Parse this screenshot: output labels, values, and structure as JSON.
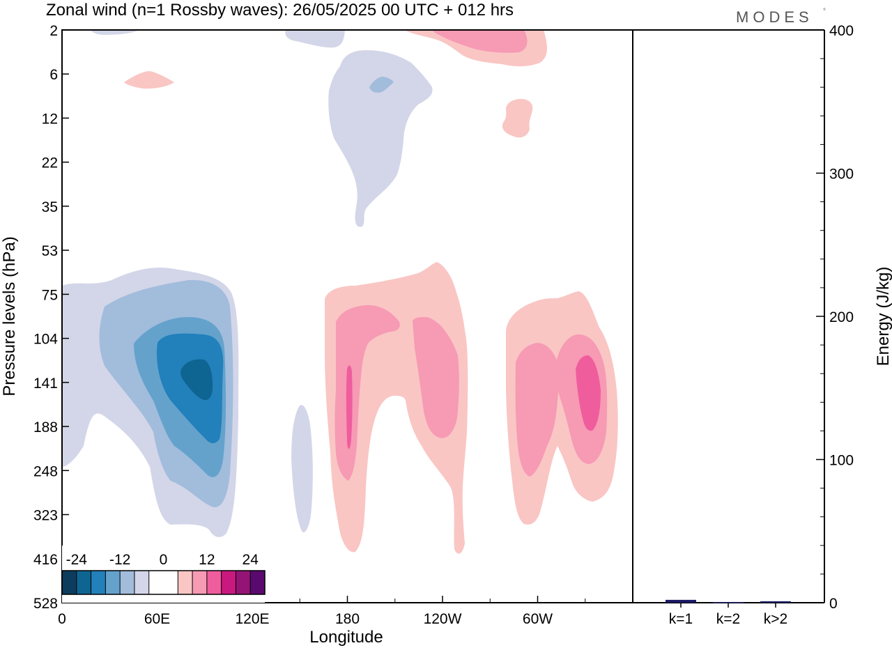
{
  "chart_data": [
    {
      "type": "heatmap",
      "title": "Zonal wind (n=1 Rossby waves):  26/05/2025  00 UTC  + 012 hrs",
      "xlabel": "Longitude",
      "ylabel": "Pressure levels (hPa)",
      "x_ticks": [
        "0",
        "60E",
        "120E",
        "180",
        "120W",
        "60W"
      ],
      "x_tick_degrees": [
        0,
        60,
        120,
        180,
        240,
        300
      ],
      "xlim_degrees": [
        0,
        360
      ],
      "y_ticks": [
        "2",
        "6",
        "12",
        "22",
        "35",
        "53",
        "75",
        "104",
        "141",
        "188",
        "248",
        "323",
        "416",
        "528"
      ],
      "y_scale": "pressure levels (top 2 hPa, bottom 528 hPa)",
      "colorbar": {
        "labels": [
          "-24",
          "-12",
          "0",
          "12",
          "24"
        ],
        "colors": [
          "#0d3d5e",
          "#0f6592",
          "#2280bb",
          "#64a2cc",
          "#a2bcdc",
          "#d3d6e8",
          "#ffffff",
          "#ffffff",
          "#f9c6c4",
          "#f79ab4",
          "#ef5d9d",
          "#c9187e",
          "#941475",
          "#5a0a6e"
        ],
        "placement": "bottom-left"
      },
      "features": [
        {
          "sign": "negative",
          "lon_range": [
            0,
            105
          ],
          "level_range": [
            "75",
            "323"
          ],
          "peak_value": "-24"
        },
        {
          "sign": "positive",
          "lon_range": [
            158,
            232
          ],
          "level_range": [
            "75",
            "416"
          ],
          "peak_value": "12"
        },
        {
          "sign": "positive",
          "lon_range": [
            268,
            336
          ],
          "level_range": [
            "75",
            "323"
          ],
          "peak_value": "12"
        },
        {
          "sign": "negative",
          "lon_range": [
            161,
            228
          ],
          "level_range": [
            "2",
            "35"
          ],
          "peak_value": "-6"
        },
        {
          "sign": "positive",
          "lon_range": [
            205,
            305
          ],
          "level_range": [
            "2",
            "6"
          ],
          "peak_value": "12"
        }
      ]
    },
    {
      "type": "bar",
      "ylabel": "Energy (J/kg)",
      "categories": [
        "k=1",
        "k=2",
        "k>2"
      ],
      "values": [
        2,
        0.5,
        1
      ],
      "ylim": [
        0,
        400
      ],
      "y_ticks": [
        "0",
        "100",
        "200",
        "300",
        "400"
      ],
      "bar_color": "#1a1a66"
    }
  ],
  "brand": {
    "text": "MODES",
    "mark": "°"
  }
}
